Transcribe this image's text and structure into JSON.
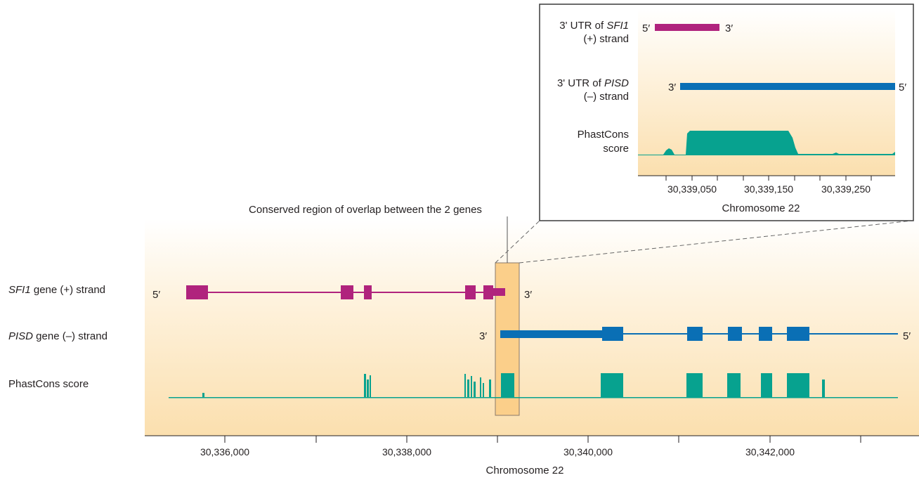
{
  "main": {
    "rows": [
      {
        "gene": "SFI1",
        "label_rest": " gene (+) strand"
      },
      {
        "gene": "PISD",
        "label_rest": " gene (–) strand"
      },
      {
        "gene": "",
        "label_rest": "PhastCons score"
      }
    ],
    "sfi1_five": "5′",
    "sfi1_three": "3′",
    "pisd_three": "3′",
    "pisd_five": "5′",
    "callout": "Conserved region of overlap between the 2 genes",
    "x_ticks": [
      "30,336,000",
      "30,338,000",
      "30,340,000",
      "30,342,000"
    ],
    "x_label": "Chromosome 22"
  },
  "inset": {
    "row1": {
      "prefix": "3' UTR of ",
      "gene": "SFI1",
      "line2": "(+) strand"
    },
    "row2": {
      "prefix": "3' UTR of ",
      "gene": "PISD",
      "line2": "(–) strand"
    },
    "row3": {
      "line1": "PhastCons",
      "line2": "score"
    },
    "sfi1_five": "5′",
    "sfi1_three": "3′",
    "pisd_three": "3′",
    "pisd_five": "5′",
    "x_ticks": [
      "30,339,050",
      "30,339,150",
      "30,339,250"
    ],
    "x_label": "Chromosome 22"
  },
  "colors": {
    "sfi1": "#b0237d",
    "pisd": "#0a6fb5",
    "phastcons": "#07a28f",
    "highlight": "#fbcf8a"
  }
}
